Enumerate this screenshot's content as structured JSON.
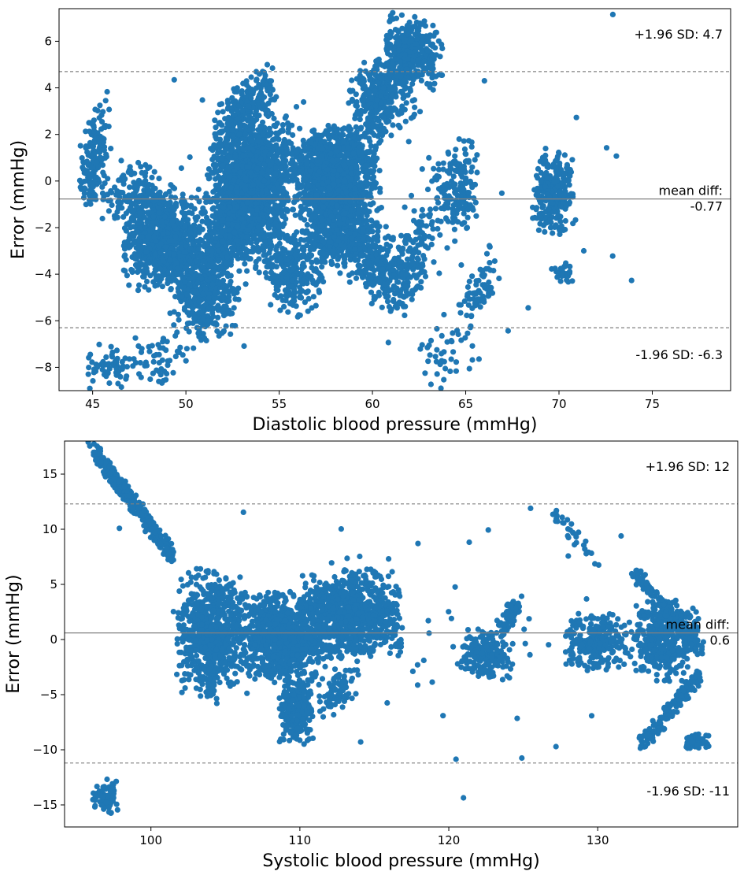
{
  "chart_data": [
    {
      "type": "scatter",
      "title": "",
      "xlabel": "Diastolic blood pressure (mmHg)",
      "ylabel": "Error (mmHg)",
      "xlim": [
        43.2,
        79.2
      ],
      "ylim": [
        -9,
        7.4
      ],
      "xticks": [
        45,
        50,
        55,
        60,
        65,
        70,
        75
      ],
      "yticks": [
        -8,
        -6,
        -4,
        -2,
        0,
        2,
        4,
        6
      ],
      "grid": false,
      "point_color": "#1f77b4",
      "reference_lines": [
        {
          "y": 4.7,
          "style": "dashed",
          "label": "+1.96 SD: 4.7"
        },
        {
          "y": -0.77,
          "style": "solid",
          "label": "mean diff:\n-0.77"
        },
        {
          "y": -6.3,
          "style": "dashed",
          "label": "-1.96 SD: -6.3"
        }
      ],
      "clusters": [
        {
          "x": [
            44.0,
            46.0
          ],
          "y": [
            -1.2,
            3.0
          ],
          "n": 170,
          "trend": 1.6
        },
        {
          "x": [
            45.0,
            49.5
          ],
          "y": [
            -2.0,
            1.0
          ],
          "n": 140,
          "trend": 0
        },
        {
          "x": [
            46.5,
            51.0
          ],
          "y": [
            -4.8,
            -0.2
          ],
          "n": 800,
          "trend": 0
        },
        {
          "x": [
            49.0,
            53.0
          ],
          "y": [
            -7.0,
            -2.0
          ],
          "n": 500,
          "trend": 0
        },
        {
          "x": [
            51.0,
            56.0
          ],
          "y": [
            -2.5,
            3.0
          ],
          "n": 1200,
          "trend": 0
        },
        {
          "x": [
            50.5,
            55.5
          ],
          "y": [
            -4.0,
            0.0
          ],
          "n": 450,
          "trend": 0
        },
        {
          "x": [
            51.5,
            55.0
          ],
          "y": [
            2.0,
            4.5
          ],
          "n": 180,
          "trend": 1.0
        },
        {
          "x": [
            54.0,
            57.5
          ],
          "y": [
            -6.0,
            -2.0
          ],
          "n": 260,
          "trend": 0
        },
        {
          "x": [
            55.5,
            60.5
          ],
          "y": [
            -2.0,
            2.5
          ],
          "n": 1100,
          "trend": 0
        },
        {
          "x": [
            56.0,
            60.0
          ],
          "y": [
            -4.0,
            -0.5
          ],
          "n": 350,
          "trend": 0
        },
        {
          "x": [
            58.5,
            62.0
          ],
          "y": [
            -5.5,
            -1.5
          ],
          "n": 300,
          "trend": -1.2
        },
        {
          "x": [
            58.5,
            62.5
          ],
          "y": [
            1.5,
            6.0
          ],
          "n": 420,
          "trend": 1.4
        },
        {
          "x": [
            60.5,
            64.0
          ],
          "y": [
            4.0,
            7.3
          ],
          "n": 260,
          "trend": -0.6
        },
        {
          "x": [
            61.0,
            63.5
          ],
          "y": [
            -5.5,
            -1.0
          ],
          "n": 140,
          "trend": 1.5
        },
        {
          "x": [
            63.0,
            66.0
          ],
          "y": [
            -2.5,
            2.0
          ],
          "n": 160,
          "trend": 0
        },
        {
          "x": [
            64.5,
            67.0
          ],
          "y": [
            -6.0,
            -3.5
          ],
          "n": 70,
          "trend": 1.2
        },
        {
          "x": [
            68.5,
            71.0
          ],
          "y": [
            -2.5,
            1.5
          ],
          "n": 260,
          "trend": 0
        },
        {
          "x": [
            69.5,
            71.0
          ],
          "y": [
            -4.5,
            -3.5
          ],
          "n": 30,
          "trend": 0
        },
        {
          "x": [
            44.5,
            47.5
          ],
          "y": [
            -9.0,
            -7.0
          ],
          "n": 60,
          "trend": 0
        },
        {
          "x": [
            47.0,
            50.5
          ],
          "y": [
            -9.0,
            -6.5
          ],
          "n": 50,
          "trend": 0
        },
        {
          "x": [
            62.0,
            66.0
          ],
          "y": [
            -9.0,
            -6.0
          ],
          "n": 40,
          "trend": 0
        },
        {
          "x": [
            44.0,
            76.8
          ],
          "y": [
            -8.5,
            7.3
          ],
          "n": 90,
          "trend": 0
        }
      ]
    },
    {
      "type": "scatter",
      "title": "",
      "xlabel": "Systolic blood pressure (mmHg)",
      "ylabel": "Error (mmHg)",
      "xlim": [
        94.2,
        139.4
      ],
      "ylim": [
        -17,
        18
      ],
      "xticks": [
        100,
        110,
        120,
        130
      ],
      "yticks": [
        -15,
        -10,
        -5,
        0,
        5,
        10,
        15
      ],
      "grid": false,
      "point_color": "#1f77b4",
      "reference_lines": [
        {
          "y": 12.3,
          "style": "dashed",
          "label": "+1.96 SD: 12"
        },
        {
          "y": 0.6,
          "style": "solid",
          "label": "mean diff:\n0.6"
        },
        {
          "y": -11.2,
          "style": "dashed",
          "label": "-1.96 SD: -11"
        }
      ],
      "clusters": [
        {
          "x": [
            96.0,
            101.5
          ],
          "y": [
            17.5,
            7.5
          ],
          "n": 320,
          "trend": 0,
          "diag": true
        },
        {
          "x": [
            101.5,
            106.5
          ],
          "y": [
            -6.0,
            7.0
          ],
          "n": 700,
          "trend": 0
        },
        {
          "x": [
            105.5,
            112.0
          ],
          "y": [
            -4.0,
            4.5
          ],
          "n": 900,
          "trend": 0
        },
        {
          "x": [
            108.5,
            111.0
          ],
          "y": [
            -9.5,
            -3.0
          ],
          "n": 260,
          "trend": 0
        },
        {
          "x": [
            110.0,
            117.0
          ],
          "y": [
            -2.0,
            6.5
          ],
          "n": 900,
          "trend": 0
        },
        {
          "x": [
            111.0,
            114.0
          ],
          "y": [
            -7.0,
            -2.5
          ],
          "n": 90,
          "trend": 1.2
        },
        {
          "x": [
            120.5,
            124.5
          ],
          "y": [
            -4.0,
            1.0
          ],
          "n": 180,
          "trend": 0
        },
        {
          "x": [
            123.0,
            125.0
          ],
          "y": [
            0.5,
            3.5
          ],
          "n": 60,
          "trend": 1.5
        },
        {
          "x": [
            127.5,
            132.5
          ],
          "y": [
            -3.0,
            2.5
          ],
          "n": 260,
          "trend": 0
        },
        {
          "x": [
            132.0,
            137.0
          ],
          "y": [
            -4.0,
            4.0
          ],
          "n": 380,
          "trend": 0
        },
        {
          "x": [
            132.5,
            137.0
          ],
          "y": [
            6.0,
            -1.0
          ],
          "n": 160,
          "trend": 0,
          "diag": true
        },
        {
          "x": [
            133.0,
            137.0
          ],
          "y": [
            -9.5,
            -3.0
          ],
          "n": 160,
          "trend": 0,
          "diag2": true
        },
        {
          "x": [
            135.5,
            137.5
          ],
          "y": [
            -10.0,
            -8.5
          ],
          "n": 60,
          "trend": 0
        },
        {
          "x": [
            96.0,
            98.0
          ],
          "y": [
            -15.8,
            -12.5
          ],
          "n": 70,
          "trend": 0
        },
        {
          "x": [
            127.0,
            130.0
          ],
          "y": [
            11.5,
            7.0
          ],
          "n": 30,
          "trend": 0,
          "diag": true
        },
        {
          "x": [
            95.0,
            137.0
          ],
          "y": [
            -14.5,
            17.0
          ],
          "n": 60,
          "trend": 0
        }
      ]
    }
  ]
}
